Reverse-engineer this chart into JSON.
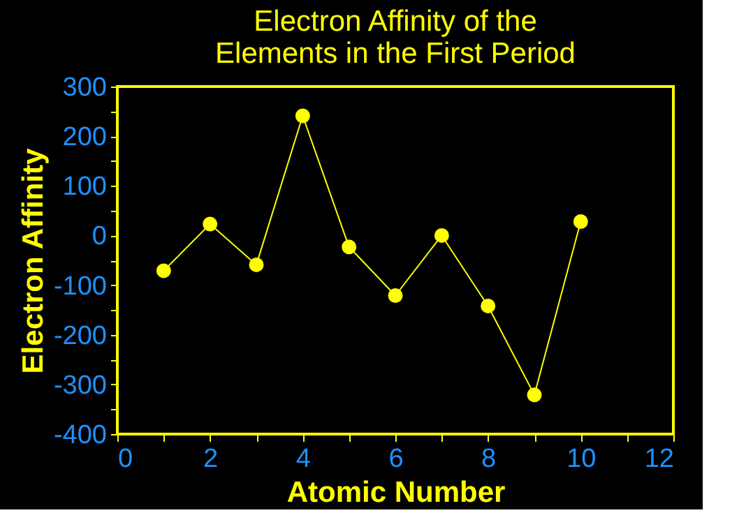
{
  "chart_data": {
    "type": "line",
    "title": [
      "Electron Affinity of the",
      "Elements in the First Period"
    ],
    "xlabel": "Atomic Number",
    "ylabel": "Electron Affinity",
    "x": [
      1,
      2,
      3,
      4,
      5,
      6,
      7,
      8,
      9,
      10
    ],
    "series": [
      {
        "color": "#ffff00",
        "values": [
          -71,
          23,
          -59,
          241,
          -23,
          -121,
          0,
          -142,
          -321,
          28
        ]
      }
    ],
    "marker": "circle",
    "line_style": "solid",
    "grid": false,
    "legend": false,
    "xlim": [
      0,
      12
    ],
    "xticks": [
      0,
      {
        "value": 1,
        "label": null
      },
      2,
      {
        "value": 3,
        "label": null
      },
      4,
      {
        "value": 5,
        "label": null
      },
      6,
      {
        "value": 7,
        "label": null
      },
      8,
      {
        "value": 9,
        "label": null
      },
      10,
      {
        "value": 11,
        "label": null
      },
      12
    ],
    "ylim": [
      -400,
      300
    ],
    "yticks": [
      -400,
      {
        "value": -350,
        "label": null
      },
      -300,
      {
        "value": -250,
        "label": null
      },
      -200,
      {
        "value": -150,
        "label": null
      },
      -100,
      {
        "value": -50,
        "label": null
      },
      0,
      {
        "value": 50,
        "label": null
      },
      100,
      {
        "value": 150,
        "label": null
      },
      200,
      {
        "value": 250,
        "label": null
      },
      300
    ]
  }
}
